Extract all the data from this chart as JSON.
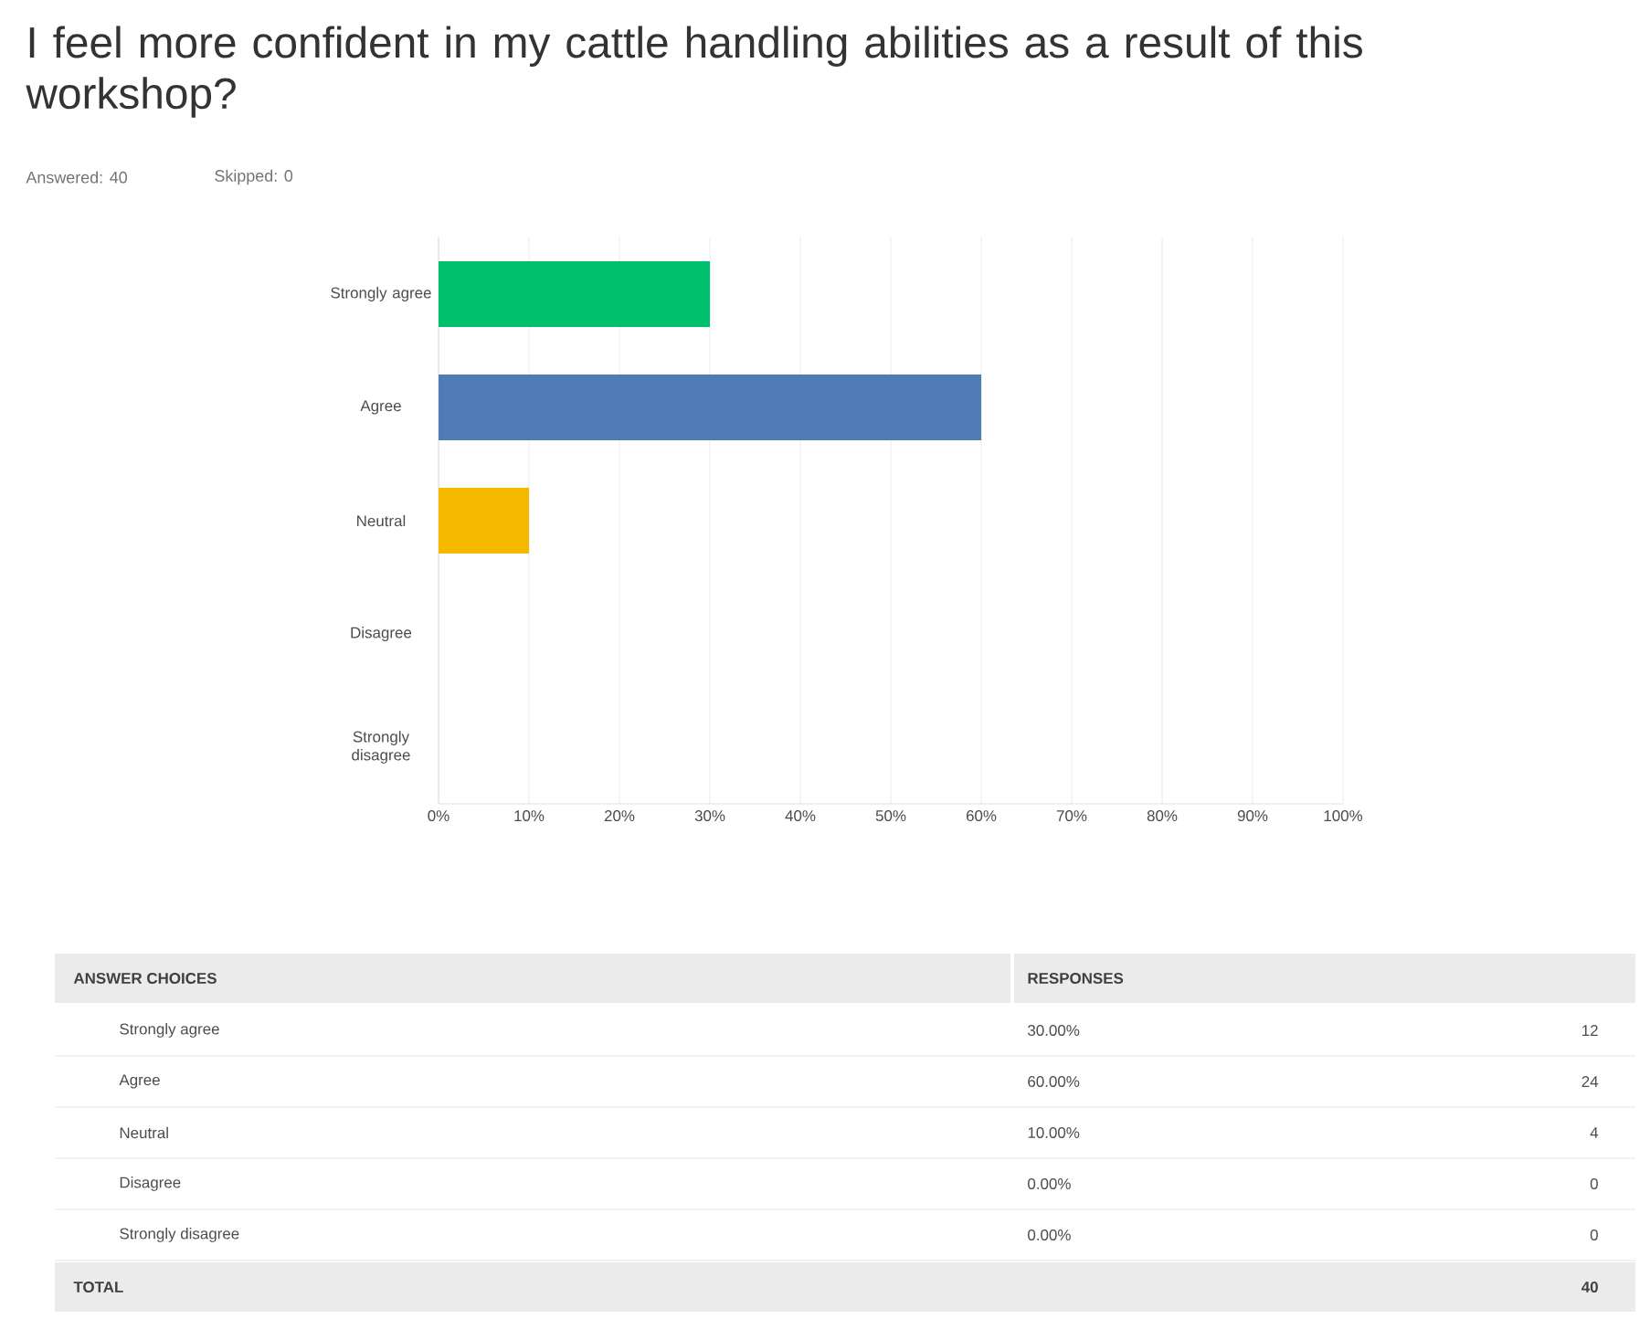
{
  "chart_data": {
    "type": "bar",
    "orientation": "horizontal",
    "title": "I feel more confident in my cattle handling abilities as a result of this workshop?",
    "subtitle": "Answered: 40",
    "categories": [
      "Strongly agree",
      "Agree",
      "Neutral",
      "Disagree",
      "Strongly disagree"
    ],
    "values": [
      30,
      60,
      10,
      0,
      0
    ],
    "colors": [
      "#00bf6f",
      "#507cb6",
      "#f6b900",
      "#cccccc",
      "#cccccc"
    ],
    "xlim": [
      0,
      100
    ],
    "xticks": [
      {
        "value": 0,
        "label": "0%"
      },
      {
        "value": 10,
        "label": "10%"
      },
      {
        "value": 20,
        "label": "20%"
      },
      {
        "value": 30,
        "label": "30%"
      },
      {
        "value": 40,
        "label": "40%"
      },
      {
        "value": 50,
        "label": "50%"
      },
      {
        "value": 60,
        "label": "60%"
      },
      {
        "value": 70,
        "label": "70%"
      },
      {
        "value": 80,
        "label": "80%"
      },
      {
        "value": 90,
        "label": "90%"
      },
      {
        "value": 100,
        "label": "100%"
      }
    ],
    "grid": "x",
    "annotations": [
      "Skipped: 0",
      "ANSWER CHOICES",
      "RESPONSES",
      "30.00%",
      "60.00%",
      "10.00%",
      "0.00%",
      "0.00%",
      "12",
      "24",
      "4",
      "0",
      "0",
      "TOTAL",
      "40"
    ]
  }
}
